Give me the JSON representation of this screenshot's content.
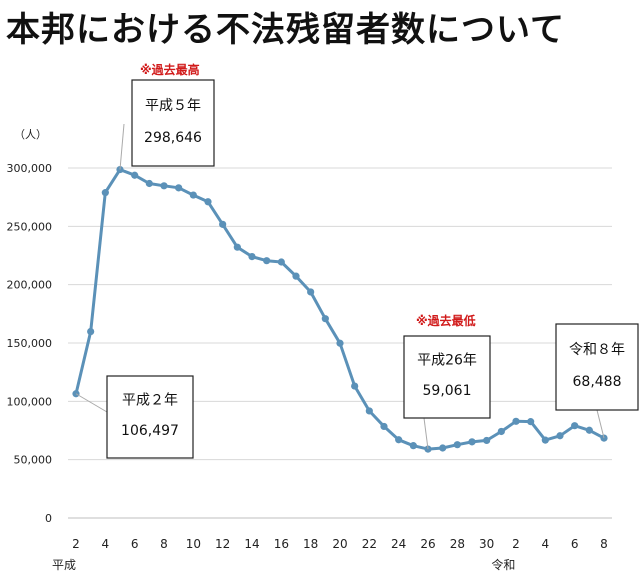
{
  "chart_data": {
    "type": "line",
    "title": "本邦における不法残留者数について",
    "ylabel": "（人）",
    "ylim": [
      0,
      300000
    ],
    "yticks": [
      "0",
      "50,000",
      "100,000",
      "150,000",
      "200,000",
      "250,000",
      "300,000"
    ],
    "era_labels": {
      "heisei": "平成",
      "reiwa": "令和"
    },
    "x_tick_labels": [
      "2",
      "4",
      "6",
      "8",
      "10",
      "12",
      "14",
      "16",
      "18",
      "20",
      "22",
      "24",
      "26",
      "28",
      "30",
      "2",
      "4",
      "6",
      "8"
    ],
    "series": [
      {
        "name": "不法残留者数",
        "color": "#5b91b8",
        "values": [
          106497,
          159828,
          278892,
          298646,
          293800,
          286704,
          284744,
          282986,
          276810,
          271048,
          251697,
          232121,
          224067,
          220552,
          219418,
          207299,
          193745,
          170839,
          149785,
          113072,
          91778,
          78488,
          67065,
          62009,
          59061,
          60007,
          62818,
          65270,
          66498,
          74167,
          82868,
          82616,
          66759,
          70491,
          79113,
          75200,
          68488
        ]
      }
    ],
    "annotations": [
      {
        "label": "平成５年",
        "value": "298,646",
        "note": "※過去最高"
      },
      {
        "label": "平成２年",
        "value": "106,497"
      },
      {
        "label": "平成26年",
        "value": "59,061",
        "note": "※過去最低"
      },
      {
        "label": "令和８年",
        "value": "68,488"
      }
    ]
  }
}
